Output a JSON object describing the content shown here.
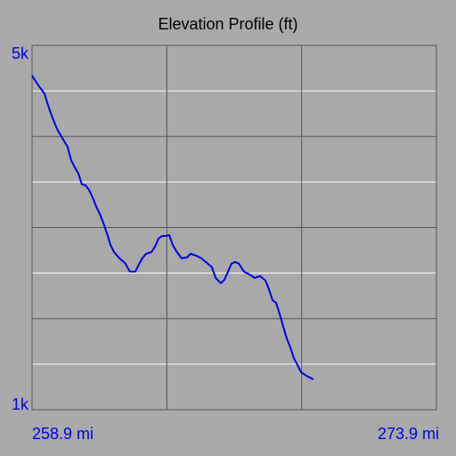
{
  "chart_data": {
    "type": "line",
    "title": "Elevation Profile (ft)",
    "x": [
      258.9,
      259.16,
      259.36,
      259.49,
      259.63,
      259.83,
      260.02,
      260.22,
      260.35,
      260.49,
      260.62,
      260.75,
      260.88,
      261.01,
      261.15,
      261.28,
      261.41,
      261.54,
      261.68,
      261.81,
      261.94,
      262.14,
      262.34,
      262.53,
      262.73,
      262.86,
      262.99,
      263.13,
      263.33,
      263.46,
      263.59,
      263.72,
      263.86,
      263.99,
      264.12,
      264.25,
      264.45,
      264.65,
      264.78,
      264.98,
      265.18,
      265.38,
      265.57,
      265.71,
      265.9,
      266.04,
      266.17,
      266.3,
      266.43,
      266.57,
      266.76,
      266.96,
      267.16,
      267.36,
      267.56,
      267.69,
      267.82,
      267.95,
      268.08,
      268.22,
      268.35,
      268.48,
      268.61,
      268.75,
      268.88,
      269.08,
      269.34
    ],
    "series": [
      {
        "color": "#0000e6",
        "values": [
          4668,
          4550,
          4472,
          4345,
          4227,
          4081,
          3983,
          3885,
          3738,
          3660,
          3592,
          3474,
          3465,
          3416,
          3328,
          3230,
          3152,
          3054,
          2936,
          2809,
          2731,
          2663,
          2614,
          2516,
          2516,
          2594,
          2663,
          2712,
          2731,
          2790,
          2878,
          2907,
          2907,
          2917,
          2809,
          2741,
          2663,
          2672,
          2712,
          2692,
          2663,
          2614,
          2565,
          2448,
          2389,
          2428,
          2516,
          2604,
          2623,
          2604,
          2516,
          2486,
          2447,
          2467,
          2418,
          2320,
          2203,
          2174,
          2056,
          1910,
          1782,
          1685,
          1567,
          1489,
          1411,
          1372,
          1333
        ]
      }
    ],
    "xlim": [
      258.9,
      273.9
    ],
    "ylim": [
      1000,
      5000
    ],
    "xticks": [
      {
        "value": 258.9,
        "label": "258.9 mi"
      },
      {
        "value": 273.9,
        "label": "273.9 mi"
      }
    ],
    "yticks": [
      {
        "value": 5000,
        "label": "5k"
      },
      {
        "value": 1000,
        "label": "1k"
      }
    ],
    "xgrid": [
      263.9,
      268.9
    ],
    "ygrid": [
      1500,
      2000,
      2500,
      3000,
      3500,
      4000,
      4500
    ],
    "grid_colors": [
      "#ffffff",
      "#555555"
    ],
    "label_color": "#0000e6"
  }
}
